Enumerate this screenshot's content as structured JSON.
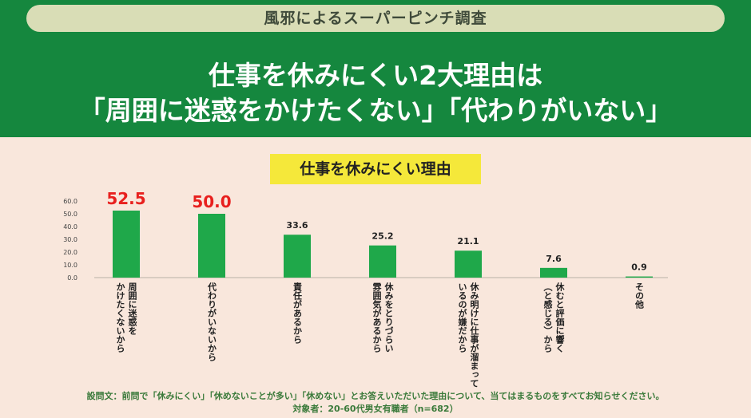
{
  "header": {
    "pill_text": "風邪によるスーパーピンチ調査",
    "headline_line1": "仕事を休みにくい2大理由は",
    "headline_line2": "「周囲に迷惑をかけたくない」「代わりがいない」"
  },
  "colors": {
    "bar": "#1fa84a",
    "highlight_value": "#e8201e",
    "header_green": "#15873e"
  },
  "chart_data": {
    "type": "bar",
    "title": "仕事を休みにくい理由",
    "categories": [
      "周囲に迷惑を\nかけたくないから",
      "代わりがいないから",
      "責任があるから",
      "休みをとりづらい\n雰囲気があるから",
      "休み明けに仕事が溜まって\nいるのが嫌だから",
      "休むと評価に響く\n（と感じる）から",
      "その他"
    ],
    "values": [
      52.5,
      50.0,
      33.6,
      25.2,
      21.1,
      7.6,
      0.9
    ],
    "value_labels": [
      "52.5",
      "50.0",
      "33.6",
      "25.2",
      "21.1",
      "7.6",
      "0.9"
    ],
    "highlighted": [
      true,
      true,
      false,
      false,
      false,
      false,
      false
    ],
    "ylim": [
      0,
      60
    ],
    "yticks": [
      "0.0",
      "10.0",
      "20.0",
      "30.0",
      "40.0",
      "50.0",
      "60.0"
    ],
    "grid": false,
    "legend": "none"
  },
  "footer": {
    "question": "設問文：前問で「休みにくい」「休めないことが多い」「休めない」とお答えいただいた理由について、当てはまるものをすべてお知らせください。",
    "respondents": "対象者：20-60代男女有職者（n=682）"
  }
}
